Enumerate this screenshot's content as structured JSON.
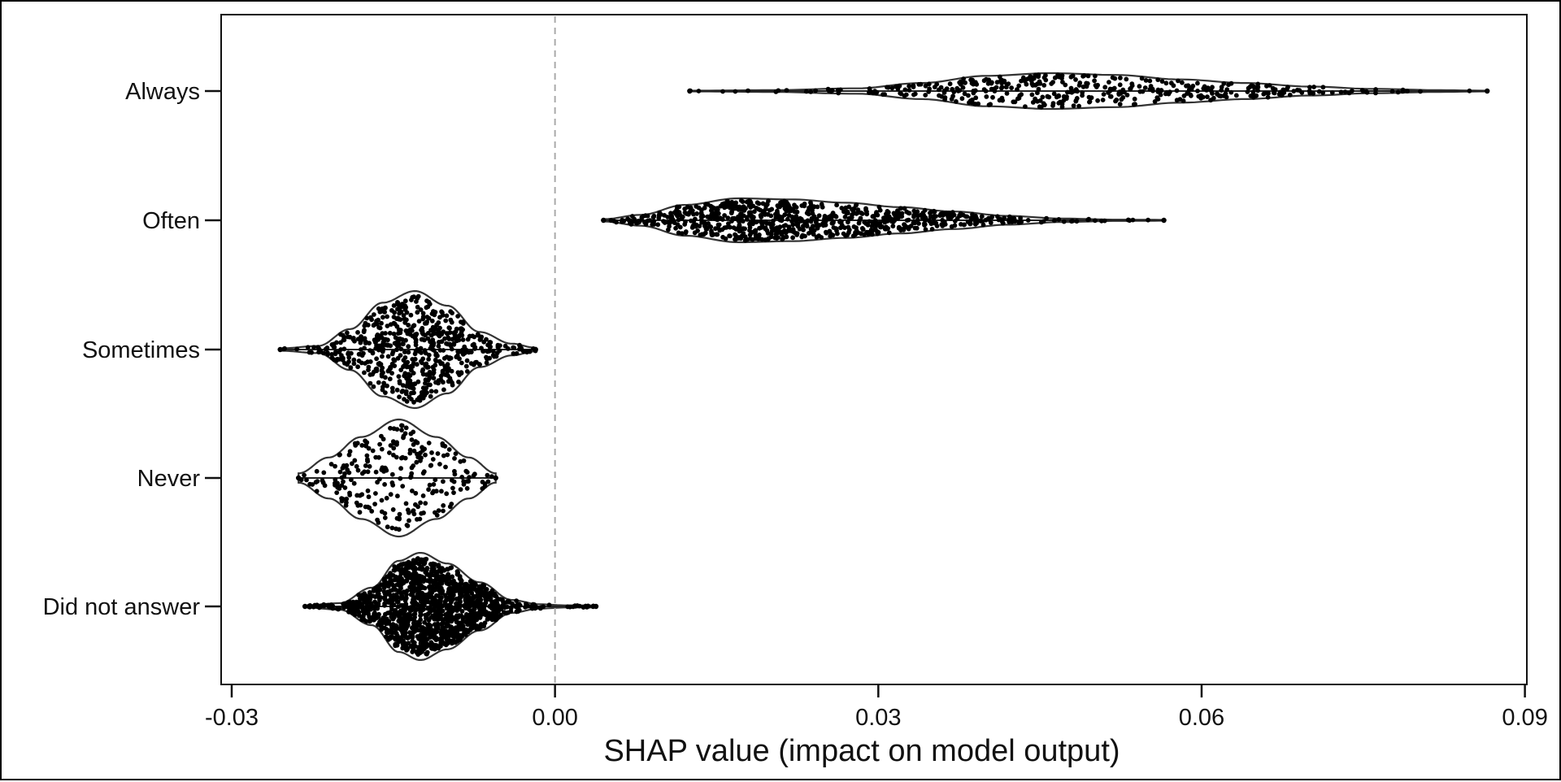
{
  "chart_data": {
    "type": "violin",
    "title": "",
    "xlabel": "SHAP value (impact on model output)",
    "ylabel": "",
    "xlim": [
      -0.031,
      0.091
    ],
    "x_ticks": [
      "-0.03",
      "0.00",
      "0.03",
      "0.06",
      "0.09"
    ],
    "x_tick_values": [
      -0.03,
      0.0,
      0.03,
      0.06,
      0.09
    ],
    "reference_line": 0.0,
    "grid": false,
    "point_color": "#000000",
    "outline_color": "#333333",
    "categories": [
      "Always",
      "Often",
      "Sometimes",
      "Never",
      "Did not answer"
    ],
    "series": [
      {
        "category": "Always",
        "min": 0.0125,
        "max": 0.0865,
        "median": 0.046,
        "n_points": 420,
        "density": [
          [
            0.0125,
            0.02
          ],
          [
            0.02,
            0.05
          ],
          [
            0.028,
            0.15
          ],
          [
            0.034,
            0.45
          ],
          [
            0.04,
            0.85
          ],
          [
            0.046,
            1.0
          ],
          [
            0.052,
            0.9
          ],
          [
            0.058,
            0.65
          ],
          [
            0.064,
            0.45
          ],
          [
            0.07,
            0.25
          ],
          [
            0.076,
            0.12
          ],
          [
            0.082,
            0.05
          ],
          [
            0.0865,
            0.02
          ]
        ]
      },
      {
        "category": "Often",
        "min": 0.0045,
        "max": 0.0565,
        "median": 0.022,
        "n_points": 800,
        "density": [
          [
            0.0045,
            0.05
          ],
          [
            0.008,
            0.25
          ],
          [
            0.012,
            0.7
          ],
          [
            0.017,
            1.0
          ],
          [
            0.022,
            0.95
          ],
          [
            0.027,
            0.8
          ],
          [
            0.032,
            0.6
          ],
          [
            0.037,
            0.4
          ],
          [
            0.042,
            0.2
          ],
          [
            0.047,
            0.08
          ],
          [
            0.052,
            0.03
          ],
          [
            0.0565,
            0.02
          ]
        ]
      },
      {
        "category": "Sometimes",
        "min": -0.0255,
        "max": -0.0018,
        "median": -0.0125,
        "n_points": 620,
        "density": [
          [
            -0.0255,
            0.02
          ],
          [
            -0.022,
            0.06
          ],
          [
            -0.019,
            0.35
          ],
          [
            -0.016,
            0.8
          ],
          [
            -0.013,
            1.0
          ],
          [
            -0.01,
            0.75
          ],
          [
            -0.007,
            0.3
          ],
          [
            -0.004,
            0.1
          ],
          [
            -0.0018,
            0.03
          ]
        ]
      },
      {
        "category": "Never",
        "min": -0.0238,
        "max": -0.0055,
        "median": -0.0145,
        "n_points": 260,
        "density": [
          [
            -0.0238,
            0.08
          ],
          [
            -0.021,
            0.35
          ],
          [
            -0.018,
            0.7
          ],
          [
            -0.0145,
            1.0
          ],
          [
            -0.011,
            0.7
          ],
          [
            -0.008,
            0.35
          ],
          [
            -0.0055,
            0.08
          ]
        ]
      },
      {
        "category": "Did not answer",
        "min": -0.0232,
        "max": 0.0038,
        "median": -0.0125,
        "n_points": 1400,
        "density": [
          [
            -0.0232,
            0.02
          ],
          [
            -0.02,
            0.06
          ],
          [
            -0.017,
            0.35
          ],
          [
            -0.0145,
            0.85
          ],
          [
            -0.0125,
            1.0
          ],
          [
            -0.01,
            0.8
          ],
          [
            -0.007,
            0.45
          ],
          [
            -0.004,
            0.12
          ],
          [
            -0.0015,
            0.04
          ],
          [
            0.001,
            0.02
          ],
          [
            0.0038,
            0.02
          ]
        ]
      }
    ]
  }
}
